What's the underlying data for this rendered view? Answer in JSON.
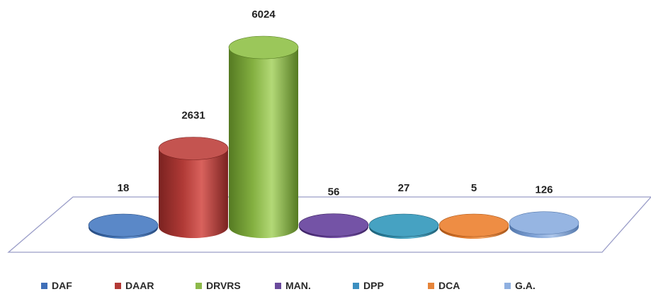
{
  "chart_data": {
    "type": "bar",
    "style": "3d-cylinder",
    "categories": [
      "DAF",
      "DAAR",
      "DRVRS",
      "MAN.",
      "DPP",
      "DCA",
      "G.A."
    ],
    "values": [
      18,
      2631,
      6024,
      56,
      27,
      5,
      126
    ],
    "title": "",
    "xlabel": "",
    "ylabel": "",
    "ylim": [
      0,
      6024
    ],
    "grid": false,
    "legend_position": "bottom",
    "colors": {
      "DAF": {
        "side": "#3f6fb0",
        "light": "#6a97d4",
        "dark": "#24487c",
        "top": "#5a88c8"
      },
      "DAAR": {
        "side": "#b03a36",
        "light": "#d9625d",
        "dark": "#7a2220",
        "top": "#c45450"
      },
      "DRVRS": {
        "side": "#84b041",
        "light": "#b3d977",
        "dark": "#557a22",
        "top": "#9bc75a"
      },
      "MAN.": {
        "side": "#5e3a8e",
        "light": "#8560b6",
        "dark": "#3a2160",
        "top": "#7453a6"
      },
      "DPP": {
        "side": "#2e8aa8",
        "light": "#5cb3cf",
        "dark": "#1c5d74",
        "top": "#46a2c2"
      },
      "DCA": {
        "side": "#e0792c",
        "light": "#f3a160",
        "dark": "#a55215",
        "top": "#ee8d44"
      },
      "G.A.": {
        "side": "#7fa2d6",
        "light": "#adc6ea",
        "dark": "#5377ab",
        "top": "#96b5e2"
      }
    },
    "legend_colors": {
      "DAF": "#3f6fb8",
      "DAAR": "#b33a36",
      "DRVRS": "#8cb94a",
      "MAN.": "#6a4a9c",
      "DPP": "#3c8fc0",
      "DCA": "#e6843a",
      "G.A.": "#8fb0e0"
    }
  }
}
